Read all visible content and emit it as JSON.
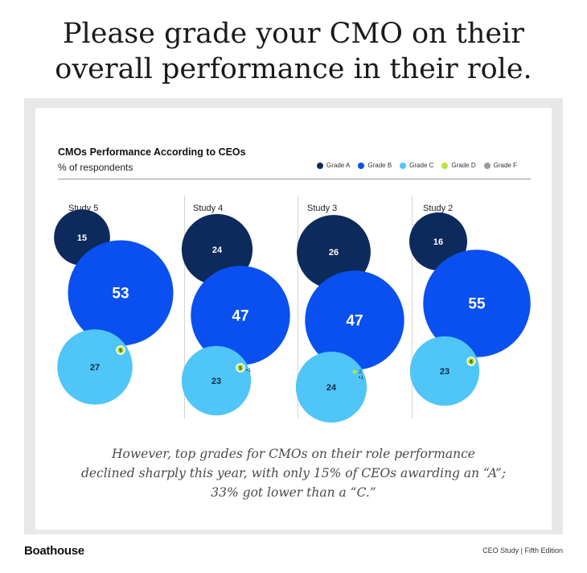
{
  "headline": {
    "line1": "Please grade your CMO on their",
    "line2": "overall performance in their role."
  },
  "chart_data": {
    "type": "bubble",
    "title": "CMOs Performance According to CEOs",
    "subtitle": "% of respondents",
    "legend": [
      {
        "name": "Grade A",
        "color": "#0d2a5c"
      },
      {
        "name": "Grade B",
        "color": "#0a50f0"
      },
      {
        "name": "Grade C",
        "color": "#4fc5f8"
      },
      {
        "name": "Grade D",
        "color": "#b8e632"
      },
      {
        "name": "Grade F",
        "color": "#9a9a9a"
      }
    ],
    "legend_placement": "top-right",
    "studies": [
      {
        "name": "Study 5",
        "values": {
          "Grade A": 15,
          "Grade B": 53,
          "Grade C": 27,
          "Grade D": 5
        }
      },
      {
        "name": "Study 4",
        "values": {
          "Grade A": 24,
          "Grade B": 47,
          "Grade C": 23,
          "Grade D": 5,
          "Grade F": 1
        }
      },
      {
        "name": "Study 3",
        "values": {
          "Grade A": 26,
          "Grade B": 47,
          "Grade C": 24,
          "Grade D": 2,
          "Grade F": 1
        }
      },
      {
        "name": "Study 2",
        "values": {
          "Grade A": 16,
          "Grade B": 55,
          "Grade C": 23,
          "Grade D": 6
        }
      }
    ]
  },
  "footnote": {
    "line1": "However, top grades for CMOs on their role performance",
    "line2": "declined sharply this year, with only 15% of CEOs awarding an “A”;",
    "line3": "33% got lower than a “C.”"
  },
  "footer": {
    "brand": "Boathouse",
    "edition": "CEO Study | Fifth Edition"
  }
}
